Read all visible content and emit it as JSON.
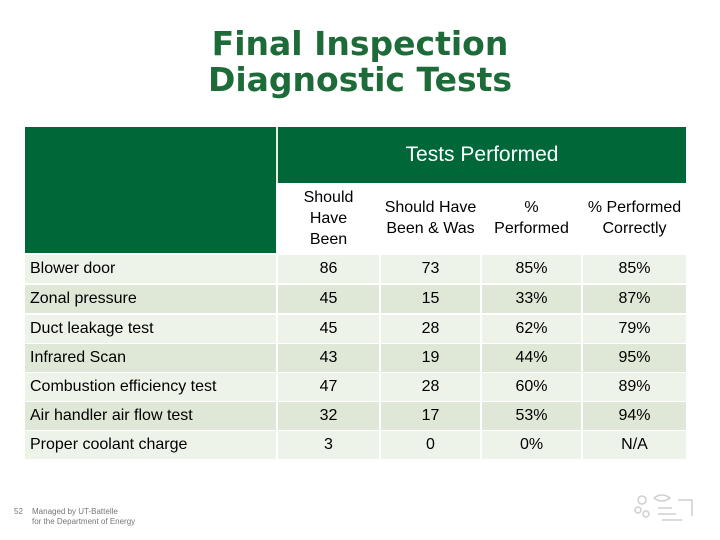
{
  "title": {
    "line1": "Final Inspection",
    "line2": "Diagnostic Tests"
  },
  "table": {
    "group_header": "Tests Performed",
    "columns": [
      "Should Have Been",
      "Should Have Been & Was",
      "% Performed",
      "% Performed Correctly"
    ],
    "rows": [
      {
        "name": "Blower door",
        "values": [
          "86",
          "73",
          "85%",
          "85%"
        ]
      },
      {
        "name": "Zonal pressure",
        "values": [
          "45",
          "15",
          "33%",
          "87%"
        ]
      },
      {
        "name": "Duct leakage test",
        "values": [
          "45",
          "28",
          "62%",
          "79%"
        ]
      },
      {
        "name": "Infrared Scan",
        "values": [
          "43",
          "19",
          "44%",
          "95%"
        ]
      },
      {
        "name": "Combustion efficiency test",
        "values": [
          "47",
          "28",
          "60%",
          "89%"
        ]
      },
      {
        "name": "Air handler air flow test",
        "values": [
          "32",
          "17",
          "53%",
          "94%"
        ]
      },
      {
        "name": "Proper coolant charge",
        "values": [
          "3",
          "0",
          "0%",
          "N/A"
        ]
      }
    ]
  },
  "footer": {
    "page_number": "52",
    "line1": "Managed by UT-Battelle",
    "line2": "for the Department of Energy"
  },
  "logo": {
    "icon": "oak-ridge-logo-icon",
    "color": "#bfbfbf"
  }
}
